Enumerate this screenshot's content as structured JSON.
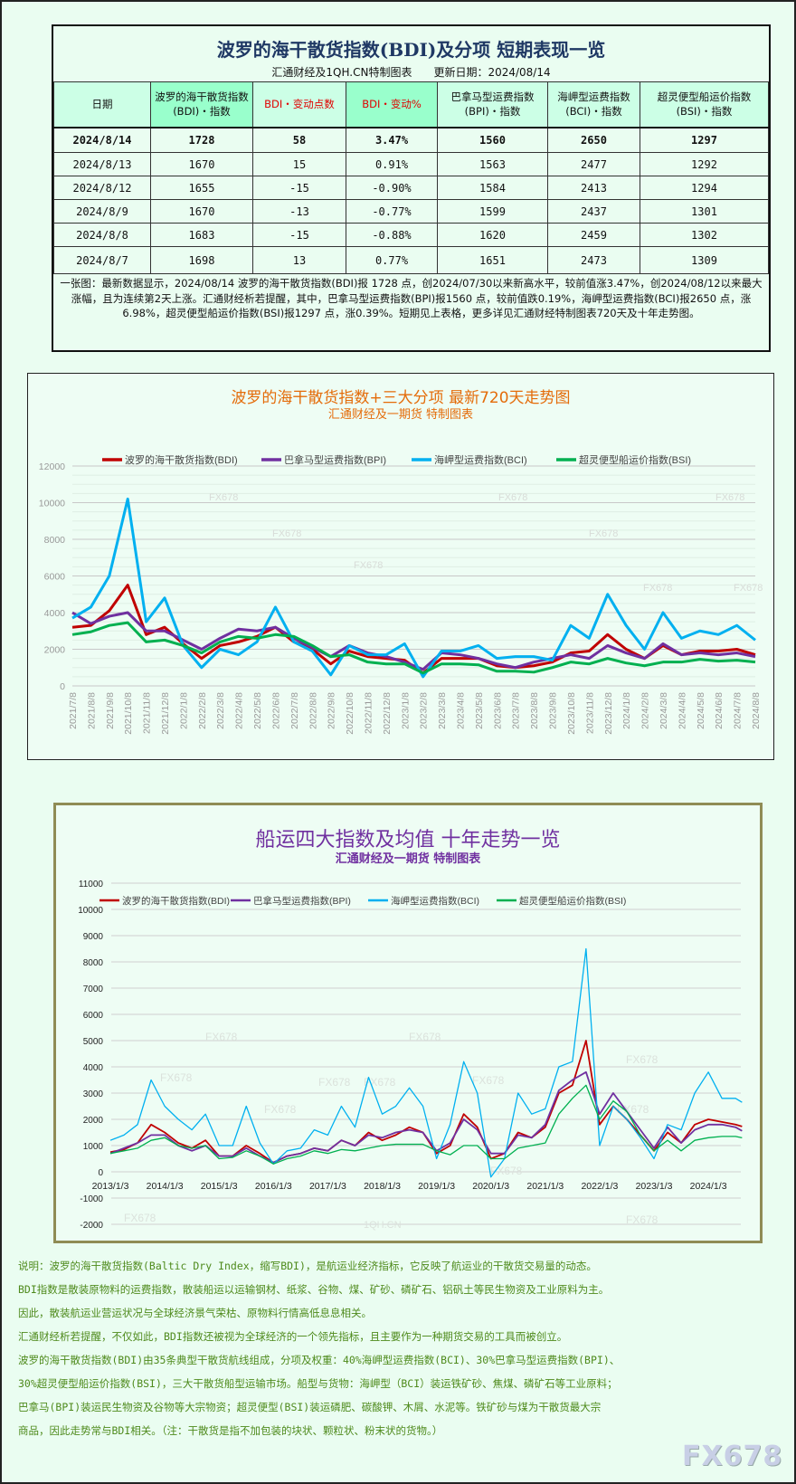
{
  "table": {
    "title": "波罗的海干散货指数(BDI)及分项 短期表现一览",
    "subtitle": "汇通财经及1QH.CN特制图表　　更新日期：2024/08/14",
    "headers": [
      "日期",
      "波罗的海干散货指数(BDI)・指数",
      "BDI・变动点数",
      "BDI・变动%",
      "巴拿马型运费指数(BPI)・指数",
      "海岬型运费指数(BCI)・指数",
      "超灵便型船运价指数(BSI)・指数"
    ],
    "rows": [
      [
        "2024/8/14",
        "1728",
        "58",
        "3.47%",
        "1560",
        "2650",
        "1297"
      ],
      [
        "2024/8/13",
        "1670",
        "15",
        "0.91%",
        "1563",
        "2477",
        "1292"
      ],
      [
        "2024/8/12",
        "1655",
        "-15",
        "-0.90%",
        "1584",
        "2413",
        "1294"
      ],
      [
        "2024/8/9",
        "1670",
        "-13",
        "-0.77%",
        "1599",
        "2437",
        "1301"
      ],
      [
        "2024/8/8",
        "1683",
        "-15",
        "-0.88%",
        "1620",
        "2459",
        "1302"
      ],
      [
        "2024/8/7",
        "1698",
        "13",
        "0.77%",
        "1651",
        "2473",
        "1309"
      ]
    ],
    "summary": "一张图：最新数据显示，2024/08/14 波罗的海干散货指数(BDI)报 1728 点，创2024/07/30以来新高水平，较前值涨3.47%，创2024/08/12以来最大涨幅，且为连续第2天上涨。汇通财经析若提醒，其中，巴拿马型运费指数(BPI)报1560 点，较前值跌0.19%，海岬型运费指数(BCI)报2650 点，涨6.98%，超灵便型船运价指数(BSI)报1297 点，涨0.39%。短期见上表格，更多详见汇通财经特制图表720天及十年走势图。"
  },
  "colors": {
    "BDI": "#c00000",
    "BPI": "#7030a0",
    "BCI": "#00b0f0",
    "BSI": "#00b050",
    "chart1_title": "#e46c0a",
    "chart2_title": "#7030a0",
    "notes": "#4e8a1c"
  },
  "watermark": "FX678",
  "watermark2": "1QH.CN",
  "chart_data": [
    {
      "type": "line",
      "title": "波罗的海干散货指数+三大分项  最新720天走势图",
      "subtitle": "汇通财经及一期货  特制图表",
      "legend": [
        "波罗的海干散货指数(BDI)",
        "巴拿马型运费指数(BPI)",
        "海岬型运费指数(BCI)",
        "超灵便型船运价指数(BSI)"
      ],
      "legend_position": "top",
      "grid": true,
      "ylim": [
        0,
        12000
      ],
      "yticks": [
        "0",
        "2000",
        "4000",
        "6000",
        "8000",
        "10000",
        "12000"
      ],
      "x": [
        "2021/7/8",
        "2021/8/8",
        "2021/9/8",
        "2021/10/8",
        "2021/11/8",
        "2021/12/8",
        "2022/1/8",
        "2022/2/8",
        "2022/3/8",
        "2022/4/8",
        "2022/5/8",
        "2022/6/8",
        "2022/7/8",
        "2022/8/8",
        "2022/9/8",
        "2022/10/8",
        "2022/11/8",
        "2022/12/8",
        "2023/1/8",
        "2023/2/8",
        "2023/3/8",
        "2023/4/8",
        "2023/5/8",
        "2023/6/8",
        "2023/7/8",
        "2023/8/8",
        "2023/9/8",
        "2023/10/8",
        "2023/11/8",
        "2023/12/8",
        "2024/1/8",
        "2024/2/8",
        "2024/3/8",
        "2024/4/8",
        "2024/5/8",
        "2024/6/8",
        "2024/7/8",
        "2024/8/8"
      ],
      "series": [
        {
          "name": "波罗的海干散货指数(BDI)",
          "values": [
            3200,
            3300,
            4100,
            5500,
            2800,
            3200,
            2300,
            1500,
            2200,
            2400,
            2700,
            3200,
            2400,
            2000,
            1200,
            1900,
            1600,
            1500,
            1400,
            700,
            1500,
            1500,
            1500,
            1100,
            1000,
            1100,
            1300,
            1800,
            1900,
            2800,
            2000,
            1500,
            2200,
            1700,
            1900,
            1900,
            2000,
            1700
          ]
        },
        {
          "name": "巴拿马型运费指数(BPI)",
          "values": [
            4000,
            3400,
            3800,
            4000,
            3000,
            3000,
            2500,
            2000,
            2600,
            3100,
            3000,
            3200,
            2600,
            2100,
            1600,
            2200,
            1800,
            1600,
            1300,
            900,
            1800,
            1700,
            1500,
            1200,
            1000,
            1300,
            1500,
            1700,
            1500,
            2200,
            1800,
            1500,
            2300,
            1700,
            1800,
            1700,
            1800,
            1600
          ]
        },
        {
          "name": "海岬型运费指数(BCI)",
          "values": [
            3700,
            4300,
            6000,
            10200,
            3500,
            4800,
            2200,
            1000,
            2000,
            1700,
            2400,
            4300,
            2400,
            1900,
            600,
            2200,
            1700,
            1700,
            2300,
            500,
            1900,
            1900,
            2200,
            1500,
            1600,
            1600,
            1400,
            3300,
            2600,
            5000,
            3300,
            2000,
            4000,
            2600,
            3000,
            2800,
            3300,
            2500
          ]
        },
        {
          "name": "超灵便型船运价指数(BSI)",
          "values": [
            2800,
            2950,
            3300,
            3450,
            2400,
            2500,
            2200,
            1800,
            2400,
            2700,
            2600,
            2800,
            2700,
            2200,
            1600,
            1700,
            1300,
            1200,
            1200,
            700,
            1200,
            1200,
            1150,
            800,
            800,
            750,
            1000,
            1300,
            1200,
            1500,
            1250,
            1100,
            1300,
            1300,
            1450,
            1350,
            1400,
            1300
          ]
        }
      ]
    },
    {
      "type": "line",
      "title": "船运四大指数及均值 十年走势一览",
      "subtitle": "汇通财经及一期货 特制图表",
      "legend": [
        "波罗的海干散货指数(BDI)",
        "巴拿马型运费指数(BPI)",
        "海岬型运费指数(BCI)",
        "超灵便型船运价指数(BSI)"
      ],
      "legend_position": "top",
      "grid": true,
      "ylim": [
        -2000,
        11000
      ],
      "yticks": [
        "-2000",
        "-1000",
        "0",
        "1000",
        "2000",
        "3000",
        "4000",
        "5000",
        "6000",
        "7000",
        "8000",
        "9000",
        "10000",
        "11000"
      ],
      "xticks": [
        "2013/1/3",
        "2014/1/3",
        "2015/1/3",
        "2016/1/3",
        "2017/1/3",
        "2018/1/3",
        "2019/1/3",
        "2020/1/3",
        "2021/1/3",
        "2022/1/3",
        "2023/1/3",
        "2024/1/3"
      ],
      "x": [
        2013.0,
        2013.25,
        2013.5,
        2013.75,
        2014.0,
        2014.25,
        2014.5,
        2014.75,
        2015.0,
        2015.25,
        2015.5,
        2015.75,
        2016.0,
        2016.25,
        2016.5,
        2016.75,
        2017.0,
        2017.25,
        2017.5,
        2017.75,
        2018.0,
        2018.25,
        2018.5,
        2018.75,
        2019.0,
        2019.25,
        2019.5,
        2019.75,
        2020.0,
        2020.25,
        2020.5,
        2020.75,
        2021.0,
        2021.25,
        2021.5,
        2021.75,
        2022.0,
        2022.25,
        2022.5,
        2022.75,
        2023.0,
        2023.25,
        2023.5,
        2023.75,
        2024.0,
        2024.25,
        2024.5,
        2024.62
      ],
      "series": [
        {
          "name": "波罗的海干散货指数(BDI)",
          "values": [
            750,
            850,
            1100,
            1800,
            1500,
            1100,
            900,
            1200,
            600,
            600,
            1000,
            700,
            350,
            600,
            700,
            900,
            800,
            1200,
            1000,
            1500,
            1200,
            1400,
            1700,
            1500,
            700,
            1000,
            2200,
            1700,
            500,
            700,
            1500,
            1300,
            1700,
            3000,
            3300,
            5000,
            1800,
            2500,
            2000,
            1400,
            800,
            1500,
            1100,
            1800,
            2000,
            1900,
            1800,
            1728
          ]
        },
        {
          "name": "巴拿马型运费指数(BPI)",
          "values": [
            700,
            900,
            1100,
            1400,
            1400,
            1000,
            800,
            1000,
            600,
            600,
            900,
            600,
            350,
            600,
            700,
            900,
            800,
            1200,
            1000,
            1400,
            1300,
            1500,
            1600,
            1500,
            800,
            1100,
            2000,
            1600,
            700,
            700,
            1400,
            1300,
            1800,
            3100,
            3500,
            3800,
            2200,
            3000,
            2300,
            1600,
            900,
            1700,
            1100,
            1600,
            1800,
            1800,
            1700,
            1560
          ]
        },
        {
          "name": "海岬型运费指数(BCI)",
          "values": [
            1200,
            1400,
            1800,
            3500,
            2500,
            2000,
            1600,
            2200,
            1000,
            1000,
            2500,
            1100,
            300,
            800,
            900,
            1600,
            1400,
            2500,
            1700,
            3600,
            2200,
            2500,
            3200,
            2500,
            500,
            1800,
            4200,
            3000,
            -200,
            500,
            3000,
            2200,
            2400,
            4000,
            4200,
            8500,
            1000,
            2500,
            2000,
            1300,
            500,
            1800,
            1600,
            3000,
            3800,
            2800,
            2800,
            2650
          ]
        },
        {
          "name": "超灵便型船运价指数(BSI)",
          "values": [
            700,
            800,
            900,
            1200,
            1300,
            1000,
            900,
            1000,
            500,
            550,
            800,
            600,
            300,
            500,
            600,
            800,
            700,
            850,
            800,
            900,
            1000,
            1050,
            1050,
            1050,
            800,
            650,
            1000,
            1000,
            500,
            500,
            900,
            1000,
            1100,
            2200,
            2800,
            3300,
            2000,
            2700,
            2300,
            1400,
            800,
            1200,
            800,
            1200,
            1300,
            1350,
            1350,
            1297
          ]
        }
      ]
    }
  ],
  "notes": [
    "说明：波罗的海干散货指数(Baltic Dry Index，缩写BDI)，是航运业经济指标，它反映了航运业的干散货交易量的动态。",
    "BDI指数是散装原物料的运费指数，散装船运以运输钢材、纸浆、谷物、煤、矿砂、磷矿石、铝矾土等民生物资及工业原料为主。",
    "因此，散装航运业营运状况与全球经济景气荣枯、原物料行情高低息息相关。",
    "汇通财经析若提醒，不仅如此，BDI指数还被视为全球经济的一个领先指标，且主要作为一种期货交易的工具而被创立。",
    "波罗的海干散货指数(BDI)由35条典型干散货航线组成，分项及权重：40%海岬型运费指数(BCI)、30%巴拿马型运费指数(BPI)、",
    "30%超灵便型船运价指数(BSI)，三大干散货船型运输市场。船型与货物：海岬型（BCI）装运铁矿砂、焦煤、磷矿石等工业原料；",
    "巴拿马(BPI)装运民生物资及谷物等大宗物资；超灵便型(BSI)装运磷肥、碳酸钾、木屑、水泥等。铁矿砂与煤为干散货最大宗",
    "商品，因此走势常与BDI相关。（注：干散货是指不加包装的块状、颗粒状、粉末状的货物。）"
  ]
}
